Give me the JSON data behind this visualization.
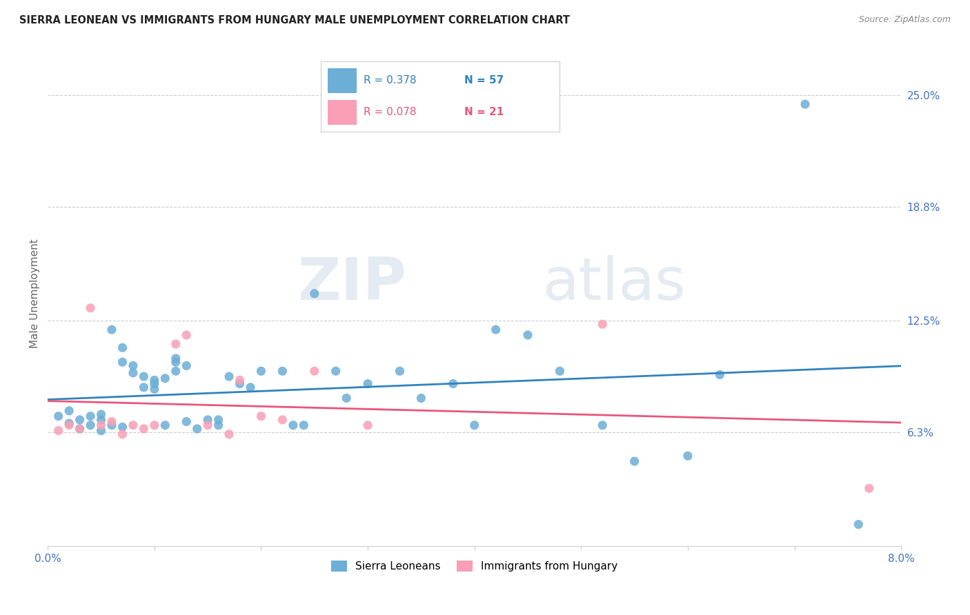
{
  "title": "SIERRA LEONEAN VS IMMIGRANTS FROM HUNGARY MALE UNEMPLOYMENT CORRELATION CHART",
  "source": "Source: ZipAtlas.com",
  "ylabel": "Male Unemployment",
  "ytick_labels": [
    "25.0%",
    "18.8%",
    "12.5%",
    "6.3%"
  ],
  "ytick_values": [
    0.25,
    0.188,
    0.125,
    0.063
  ],
  "xmin": 0.0,
  "xmax": 0.08,
  "ymin": 0.0,
  "ymax": 0.28,
  "blue_color": "#6baed6",
  "pink_color": "#fa9fb5",
  "line_blue": "#3182bd",
  "line_pink": "#e8567a",
  "watermark_zip": "ZIP",
  "watermark_atlas": "atlas",
  "sierra_x": [
    0.001,
    0.002,
    0.002,
    0.003,
    0.003,
    0.004,
    0.004,
    0.005,
    0.005,
    0.005,
    0.006,
    0.006,
    0.007,
    0.007,
    0.007,
    0.008,
    0.008,
    0.009,
    0.009,
    0.01,
    0.01,
    0.01,
    0.011,
    0.011,
    0.012,
    0.012,
    0.012,
    0.013,
    0.013,
    0.014,
    0.015,
    0.016,
    0.016,
    0.017,
    0.018,
    0.019,
    0.02,
    0.022,
    0.023,
    0.024,
    0.025,
    0.027,
    0.028,
    0.03,
    0.033,
    0.035,
    0.038,
    0.04,
    0.042,
    0.045,
    0.048,
    0.052,
    0.055,
    0.06,
    0.063,
    0.071,
    0.076
  ],
  "sierra_y": [
    0.072,
    0.075,
    0.068,
    0.07,
    0.065,
    0.072,
    0.067,
    0.073,
    0.07,
    0.064,
    0.12,
    0.067,
    0.11,
    0.102,
    0.066,
    0.1,
    0.096,
    0.094,
    0.088,
    0.092,
    0.087,
    0.09,
    0.093,
    0.067,
    0.097,
    0.102,
    0.104,
    0.1,
    0.069,
    0.065,
    0.07,
    0.07,
    0.067,
    0.094,
    0.09,
    0.088,
    0.097,
    0.097,
    0.067,
    0.067,
    0.14,
    0.097,
    0.082,
    0.09,
    0.097,
    0.082,
    0.09,
    0.067,
    0.12,
    0.117,
    0.097,
    0.067,
    0.047,
    0.05,
    0.095,
    0.245,
    0.012
  ],
  "hungary_x": [
    0.001,
    0.002,
    0.003,
    0.004,
    0.005,
    0.006,
    0.007,
    0.008,
    0.009,
    0.01,
    0.012,
    0.013,
    0.015,
    0.017,
    0.018,
    0.02,
    0.022,
    0.025,
    0.03,
    0.052,
    0.077
  ],
  "hungary_y": [
    0.064,
    0.067,
    0.065,
    0.132,
    0.067,
    0.069,
    0.062,
    0.067,
    0.065,
    0.067,
    0.112,
    0.117,
    0.067,
    0.062,
    0.092,
    0.072,
    0.07,
    0.097,
    0.067,
    0.123,
    0.032
  ]
}
